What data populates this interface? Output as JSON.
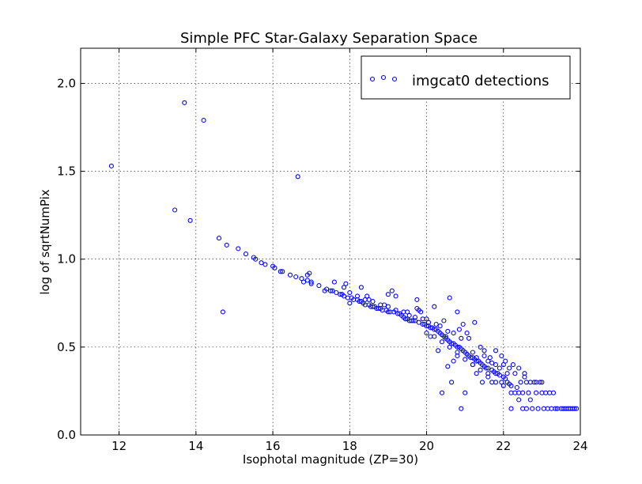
{
  "chart_data": {
    "type": "scatter",
    "title": "Simple PFC Star-Galaxy Separation Space",
    "xlabel": "Isophotal magnitude (ZP=30)",
    "ylabel": "log of sqrtNumPix",
    "xlim": [
      11,
      24
    ],
    "ylim": [
      0.0,
      2.2
    ],
    "xticks": [
      12,
      14,
      16,
      18,
      20,
      22,
      24
    ],
    "yticks": [
      0.0,
      0.5,
      1.0,
      1.5,
      2.0
    ],
    "xtick_labels": [
      "12",
      "14",
      "16",
      "18",
      "20",
      "22",
      "24"
    ],
    "ytick_labels": [
      "0.0",
      "0.5",
      "1.0",
      "1.5",
      "2.0"
    ],
    "grid": true,
    "legend_position": "top-right",
    "marker": "open-circle",
    "series_color": "#0000ff",
    "series": [
      {
        "name": "imgcat0 detections",
        "points": [
          [
            11.8,
            1.53
          ],
          [
            13.7,
            1.89
          ],
          [
            14.2,
            1.79
          ],
          [
            16.65,
            1.47
          ],
          [
            13.45,
            1.28
          ],
          [
            13.85,
            1.22
          ],
          [
            14.7,
            0.7
          ],
          [
            14.6,
            1.12
          ],
          [
            14.8,
            1.08
          ],
          [
            15.1,
            1.06
          ],
          [
            15.3,
            1.03
          ],
          [
            15.5,
            1.01
          ],
          [
            15.55,
            1.0
          ],
          [
            15.7,
            0.98
          ],
          [
            15.8,
            0.97
          ],
          [
            16.0,
            0.96
          ],
          [
            16.05,
            0.95
          ],
          [
            16.2,
            0.93
          ],
          [
            16.25,
            0.93
          ],
          [
            16.45,
            0.91
          ],
          [
            16.6,
            0.9
          ],
          [
            16.75,
            0.89
          ],
          [
            16.8,
            0.87
          ],
          [
            16.9,
            0.91
          ],
          [
            16.95,
            0.92
          ],
          [
            16.9,
            0.88
          ],
          [
            17.0,
            0.86
          ],
          [
            17.0,
            0.87
          ],
          [
            17.2,
            0.85
          ],
          [
            17.35,
            0.82
          ],
          [
            17.4,
            0.83
          ],
          [
            17.5,
            0.82
          ],
          [
            17.55,
            0.82
          ],
          [
            17.6,
            0.87
          ],
          [
            17.65,
            0.81
          ],
          [
            17.75,
            0.8
          ],
          [
            17.8,
            0.8
          ],
          [
            17.85,
            0.84
          ],
          [
            17.85,
            0.79
          ],
          [
            17.9,
            0.86
          ],
          [
            17.95,
            0.78
          ],
          [
            18.0,
            0.81
          ],
          [
            18.0,
            0.75
          ],
          [
            18.05,
            0.78
          ],
          [
            18.1,
            0.77
          ],
          [
            18.2,
            0.77
          ],
          [
            18.25,
            0.76
          ],
          [
            18.3,
            0.76
          ],
          [
            18.3,
            0.84
          ],
          [
            18.35,
            0.75
          ],
          [
            18.4,
            0.74
          ],
          [
            18.45,
            0.79
          ],
          [
            18.5,
            0.74
          ],
          [
            18.5,
            0.77
          ],
          [
            18.55,
            0.73
          ],
          [
            18.6,
            0.73
          ],
          [
            18.65,
            0.73
          ],
          [
            18.7,
            0.72
          ],
          [
            18.75,
            0.72
          ],
          [
            18.8,
            0.72
          ],
          [
            18.85,
            0.71
          ],
          [
            18.9,
            0.74
          ],
          [
            18.95,
            0.71
          ],
          [
            19.0,
            0.8
          ],
          [
            19.0,
            0.7
          ],
          [
            19.05,
            0.7
          ],
          [
            19.1,
            0.82
          ],
          [
            19.15,
            0.7
          ],
          [
            19.2,
            0.79
          ],
          [
            19.25,
            0.69
          ],
          [
            19.3,
            0.69
          ],
          [
            19.35,
            0.68
          ],
          [
            19.4,
            0.67
          ],
          [
            19.45,
            0.66
          ],
          [
            19.5,
            0.7
          ],
          [
            19.5,
            0.66
          ],
          [
            19.55,
            0.65
          ],
          [
            19.6,
            0.65
          ],
          [
            19.65,
            0.65
          ],
          [
            19.7,
            0.65
          ],
          [
            19.75,
            0.77
          ],
          [
            19.75,
            0.72
          ],
          [
            19.8,
            0.71
          ],
          [
            19.8,
            0.64
          ],
          [
            19.85,
            0.7
          ],
          [
            19.9,
            0.63
          ],
          [
            19.95,
            0.63
          ],
          [
            20.0,
            0.66
          ],
          [
            20.0,
            0.62
          ],
          [
            20.05,
            0.62
          ],
          [
            20.1,
            0.61
          ],
          [
            20.1,
            0.56
          ],
          [
            20.15,
            0.61
          ],
          [
            20.2,
            0.73
          ],
          [
            20.2,
            0.6
          ],
          [
            20.25,
            0.6
          ],
          [
            20.3,
            0.48
          ],
          [
            20.3,
            0.59
          ],
          [
            20.35,
            0.58
          ],
          [
            20.4,
            0.24
          ],
          [
            20.4,
            0.57
          ],
          [
            20.45,
            0.56
          ],
          [
            20.45,
            0.65
          ],
          [
            20.5,
            0.56
          ],
          [
            20.5,
            0.55
          ],
          [
            20.55,
            0.39
          ],
          [
            20.55,
            0.54
          ],
          [
            20.6,
            0.78
          ],
          [
            20.6,
            0.53
          ],
          [
            20.65,
            0.52
          ],
          [
            20.65,
            0.3
          ],
          [
            20.7,
            0.52
          ],
          [
            20.7,
            0.42
          ],
          [
            20.75,
            0.51
          ],
          [
            20.8,
            0.7
          ],
          [
            20.8,
            0.5
          ],
          [
            20.8,
            0.45
          ],
          [
            20.85,
            0.5
          ],
          [
            20.85,
            0.6
          ],
          [
            20.9,
            0.15
          ],
          [
            20.9,
            0.49
          ],
          [
            20.95,
            0.48
          ],
          [
            20.95,
            0.63
          ],
          [
            21.0,
            0.24
          ],
          [
            21.0,
            0.47
          ],
          [
            21.05,
            0.46
          ],
          [
            21.05,
            0.58
          ],
          [
            21.1,
            0.45
          ],
          [
            21.1,
            0.55
          ],
          [
            21.15,
            0.44
          ],
          [
            21.2,
            0.44
          ],
          [
            21.2,
            0.4
          ],
          [
            21.25,
            0.64
          ],
          [
            21.25,
            0.43
          ],
          [
            21.3,
            0.42
          ],
          [
            21.3,
            0.35
          ],
          [
            21.35,
            0.42
          ],
          [
            21.4,
            0.41
          ],
          [
            21.4,
            0.5
          ],
          [
            21.45,
            0.4
          ],
          [
            21.45,
            0.3
          ],
          [
            21.5,
            0.39
          ],
          [
            21.5,
            0.48
          ],
          [
            21.55,
            0.38
          ],
          [
            21.6,
            0.38
          ],
          [
            21.6,
            0.35
          ],
          [
            21.65,
            0.44
          ],
          [
            21.7,
            0.37
          ],
          [
            21.7,
            0.3
          ],
          [
            21.75,
            0.36
          ],
          [
            21.8,
            0.35
          ],
          [
            21.8,
            0.48
          ],
          [
            21.85,
            0.35
          ],
          [
            21.9,
            0.34
          ],
          [
            21.95,
            0.3
          ],
          [
            22.0,
            0.33
          ],
          [
            22.0,
            0.4
          ],
          [
            22.05,
            0.32
          ],
          [
            22.1,
            0.3
          ],
          [
            22.1,
            0.35
          ],
          [
            22.15,
            0.29
          ],
          [
            22.2,
            0.15
          ],
          [
            22.2,
            0.28
          ],
          [
            22.25,
            0.4
          ],
          [
            22.3,
            0.24
          ],
          [
            22.35,
            0.27
          ],
          [
            22.4,
            0.24
          ],
          [
            22.45,
            0.3
          ],
          [
            22.5,
            0.24
          ],
          [
            22.5,
            0.15
          ],
          [
            22.55,
            0.35
          ],
          [
            22.6,
            0.3
          ],
          [
            22.65,
            0.24
          ],
          [
            22.7,
            0.2
          ],
          [
            22.75,
            0.15
          ],
          [
            22.8,
            0.3
          ],
          [
            22.85,
            0.24
          ],
          [
            22.9,
            0.15
          ],
          [
            22.95,
            0.3
          ],
          [
            23.0,
            0.24
          ],
          [
            23.05,
            0.15
          ],
          [
            23.1,
            0.24
          ],
          [
            23.15,
            0.15
          ],
          [
            23.2,
            0.24
          ],
          [
            23.25,
            0.15
          ],
          [
            23.3,
            0.24
          ],
          [
            23.35,
            0.15
          ],
          [
            23.4,
            0.15
          ],
          [
            23.5,
            0.15
          ],
          [
            23.55,
            0.15
          ],
          [
            23.6,
            0.15
          ],
          [
            23.65,
            0.15
          ],
          [
            23.7,
            0.15
          ],
          [
            23.75,
            0.15
          ],
          [
            23.8,
            0.15
          ],
          [
            23.85,
            0.15
          ],
          [
            23.9,
            0.15
          ],
          [
            21.2,
            0.47
          ],
          [
            21.3,
            0.44
          ],
          [
            21.5,
            0.45
          ],
          [
            21.6,
            0.42
          ],
          [
            21.7,
            0.41
          ],
          [
            21.8,
            0.4
          ],
          [
            21.9,
            0.38
          ],
          [
            21.95,
            0.45
          ],
          [
            22.05,
            0.42
          ],
          [
            22.15,
            0.38
          ],
          [
            22.3,
            0.35
          ],
          [
            22.4,
            0.38
          ],
          [
            22.55,
            0.33
          ],
          [
            22.7,
            0.3
          ],
          [
            22.85,
            0.3
          ],
          [
            23.0,
            0.3
          ],
          [
            20.9,
            0.55
          ],
          [
            20.7,
            0.58
          ],
          [
            20.55,
            0.59
          ],
          [
            20.35,
            0.62
          ],
          [
            20.25,
            0.63
          ],
          [
            20.05,
            0.64
          ],
          [
            19.9,
            0.66
          ],
          [
            19.7,
            0.67
          ],
          [
            19.55,
            0.68
          ],
          [
            19.4,
            0.7
          ],
          [
            19.2,
            0.71
          ],
          [
            19.0,
            0.73
          ],
          [
            18.8,
            0.74
          ],
          [
            18.6,
            0.76
          ],
          [
            18.4,
            0.77
          ],
          [
            18.2,
            0.79
          ],
          [
            20.0,
            0.58
          ],
          [
            20.2,
            0.56
          ],
          [
            20.4,
            0.53
          ],
          [
            20.6,
            0.5
          ],
          [
            20.8,
            0.47
          ],
          [
            21.0,
            0.43
          ],
          [
            21.2,
            0.4
          ],
          [
            21.4,
            0.37
          ],
          [
            21.6,
            0.33
          ],
          [
            21.8,
            0.3
          ],
          [
            22.0,
            0.28
          ],
          [
            22.2,
            0.24
          ],
          [
            22.4,
            0.2
          ],
          [
            22.6,
            0.15
          ]
        ]
      }
    ]
  }
}
